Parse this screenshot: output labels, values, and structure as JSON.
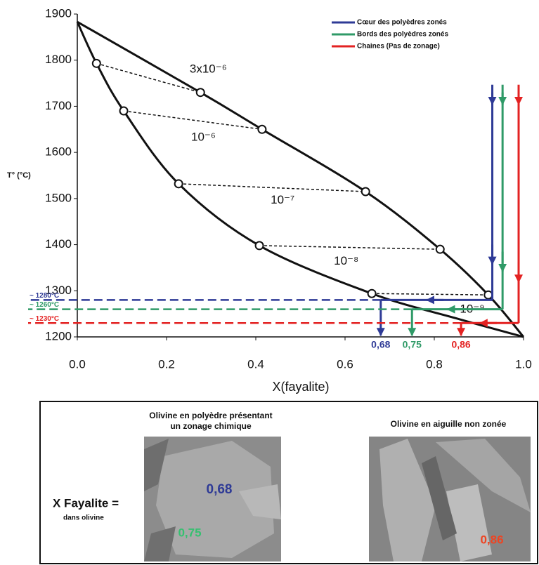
{
  "chart_data": {
    "type": "line",
    "x_label": "X(fayalite)",
    "y_label": "T° (°C)",
    "xlim": [
      0,
      1
    ],
    "ylim": [
      1200,
      1900
    ],
    "xticks": [
      {
        "value": 0,
        "label": "0.0"
      },
      0.2,
      0.4,
      0.6,
      0.8,
      {
        "value": 1,
        "label": "1.0"
      }
    ],
    "yticks": [
      1200,
      1300,
      1400,
      1500,
      1600,
      1700,
      1800,
      1900
    ],
    "curves": [
      {
        "x": [
          0,
          0.276,
          0.414,
          0.646,
          0.813,
          0.921,
          1.0
        ],
        "y": [
          1883,
          1730,
          1650,
          1515,
          1390,
          1291,
          1200
        ],
        "color": "#111111"
      },
      {
        "x": [
          0,
          0.043,
          0.104,
          0.227,
          0.408,
          0.66,
          0.85,
          1.0
        ],
        "y": [
          1883,
          1793,
          1690,
          1532,
          1398,
          1294,
          1240,
          1200
        ],
        "color": "#111111"
      }
    ],
    "tie_lines": [
      {
        "label": "3x10⁻⁶",
        "x": [
          0.043,
          0.276
        ],
        "y": [
          1793,
          1730
        ]
      },
      {
        "label": "10⁻⁶",
        "x": [
          0.104,
          0.414
        ],
        "y": [
          1690,
          1650
        ]
      },
      {
        "label": "10⁻⁷",
        "x": [
          0.227,
          0.646
        ],
        "y": [
          1532,
          1515
        ]
      },
      {
        "label": "10⁻⁸",
        "x": [
          0.408,
          0.813
        ],
        "y": [
          1398,
          1390
        ]
      },
      {
        "label": "10⁻⁹",
        "x": [
          0.66,
          0.921
        ],
        "y": [
          1294,
          1291
        ]
      }
    ],
    "series": [
      {
        "name": "Cœur des polyèdres zonés",
        "color": "#2e3a96",
        "x_start": 0.93,
        "y_start": 1730,
        "y": 1280,
        "y_label": "~ 1280°C",
        "x": 0.68,
        "x_label": "0,68"
      },
      {
        "name": "Bords des polyèdres zonés",
        "color": "#2f9a67",
        "x_start": 0.953,
        "y_start": 1730,
        "y": 1260,
        "y_label": "~ 1260°C",
        "x": 0.75,
        "x_label": "0,75"
      },
      {
        "name": "Chaines (Pas de zonage)",
        "color": "#e32222",
        "x_start": 0.989,
        "y_start": 1730,
        "y": 1230,
        "y_label": "~ 1230°C",
        "x": 0.86,
        "x_label": "0,86"
      }
    ]
  },
  "panel": {
    "left_title": [
      "Olivine en polyèdre présentant",
      "un zonage chimique"
    ],
    "right_title": "Olivine en aiguille non zonée",
    "label": "X Fayalite =",
    "sublabel": "dans olivine",
    "annotations": [
      {
        "text": "0,68",
        "color": "#2e3a96"
      },
      {
        "text": "0,75",
        "color": "#35c070"
      },
      {
        "text": "0,86",
        "color": "#ee4422"
      }
    ]
  }
}
